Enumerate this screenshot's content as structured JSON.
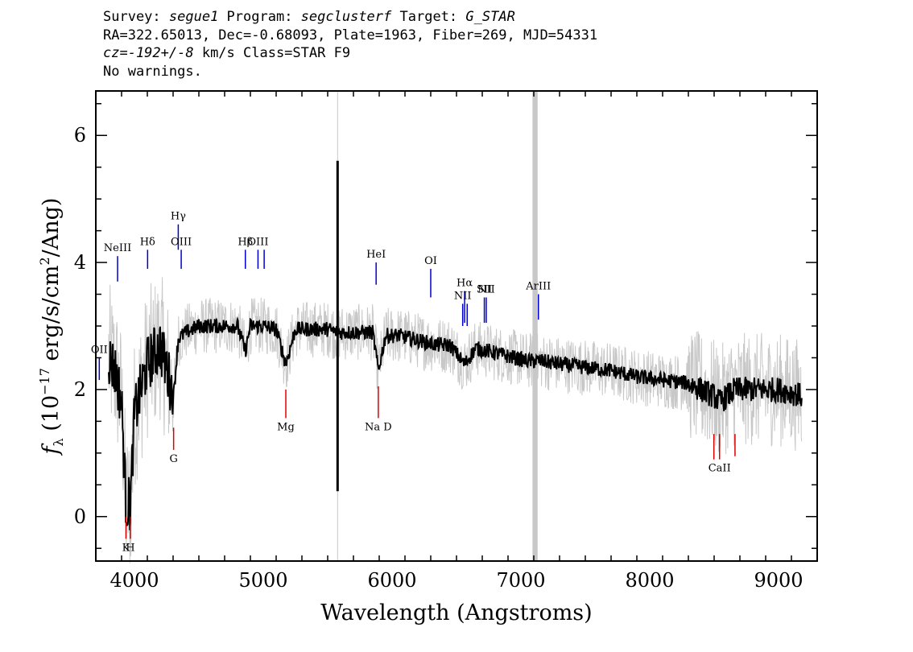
{
  "header": {
    "line1": {
      "survey_label": "Survey: ",
      "survey": "segue1",
      "program_label": " Program: ",
      "program": "segclusterf",
      "target_label": " Target: ",
      "target": "G_STAR"
    },
    "line2": "RA=322.65013, Dec=-0.68093, Plate=1963, Fiber=269, MJD=54331",
    "line3": {
      "cz": "cz=-192+/-8",
      "rest": " km/s Class=STAR F9"
    },
    "line4": "No warnings."
  },
  "chart_data": {
    "type": "line",
    "title": "",
    "xlabel": "Wavelength (Angstroms)",
    "ylabel": "f_λ (10^-17 erg/s/cm^2/Ang)",
    "xlim": [
      3700,
      9300
    ],
    "ylim": [
      -0.7,
      6.7
    ],
    "x_ticks": [
      4000,
      5000,
      6000,
      7000,
      8000,
      9000
    ],
    "y_ticks": [
      0,
      2,
      4,
      6
    ],
    "grid": false,
    "colors": {
      "flux": "#000000",
      "error": "#c8c8c8",
      "emission_line": "#0000cc",
      "absorption_line": "#dd0000"
    },
    "series": [
      {
        "role": "flux",
        "x": [
          3800,
          3850,
          3900,
          3934,
          3968,
          4000,
          4100,
          4200,
          4304,
          4340,
          4400,
          4500,
          4600,
          4700,
          4800,
          4861,
          4900,
          5000,
          5100,
          5175,
          5250,
          5400,
          5500,
          5580,
          5650,
          5750,
          5850,
          5893,
          5950,
          6050,
          6150,
          6250,
          6350,
          6450,
          6563,
          6650,
          6750,
          6850,
          6950,
          7050,
          7150,
          7300,
          7500,
          7700,
          7900,
          8100,
          8300,
          8498,
          8542,
          8662,
          8800,
          9000,
          9100,
          9180
        ],
        "y": [
          2.5,
          2.3,
          1.8,
          0.2,
          0.2,
          1.6,
          2.4,
          2.7,
          1.9,
          2.8,
          2.9,
          3.0,
          3.0,
          3.0,
          3.0,
          2.6,
          3.0,
          3.0,
          2.95,
          2.4,
          2.95,
          2.95,
          2.95,
          2.9,
          2.9,
          2.9,
          2.9,
          2.3,
          2.85,
          2.85,
          2.8,
          2.75,
          2.7,
          2.7,
          2.4,
          2.65,
          2.6,
          2.55,
          2.5,
          2.45,
          2.45,
          2.4,
          2.35,
          2.3,
          2.2,
          2.15,
          2.1,
          1.9,
          1.8,
          2.0,
          2.0,
          2.0,
          1.95,
          1.9
        ]
      },
      {
        "role": "sky-residual",
        "x": [
          5577
        ],
        "y_range": [
          0.4,
          5.6
        ]
      }
    ],
    "bad_pixel_band": {
      "x_range": [
        7090,
        7130
      ]
    },
    "emission_lines": [
      {
        "label": "NeIII",
        "x": 3869,
        "y_range": [
          3.7,
          4.1
        ]
      },
      {
        "label": "Hδ",
        "x": 4102,
        "y_range": [
          3.9,
          4.2
        ]
      },
      {
        "label": "Hγ",
        "x": 4340,
        "y_range": [
          4.2,
          4.6
        ]
      },
      {
        "label": "OIII",
        "x": 4363,
        "y_range": [
          3.9,
          4.2
        ]
      },
      {
        "label": "Hβ",
        "x": 4861,
        "y_range": [
          3.9,
          4.2
        ]
      },
      {
        "label": "OIII",
        "x": 4959,
        "y_range": [
          3.9,
          4.2
        ]
      },
      {
        "label": "",
        "x": 5007,
        "y_range": [
          3.9,
          4.2
        ]
      },
      {
        "label": "HeI",
        "x": 5876,
        "y_range": [
          3.65,
          4.0
        ]
      },
      {
        "label": "OI",
        "x": 6300,
        "y_range": [
          3.45,
          3.9
        ]
      },
      {
        "label": "NII",
        "x": 6548,
        "y_range": [
          3.0,
          3.35
        ]
      },
      {
        "label": "Hα",
        "x": 6563,
        "y_range": [
          3.05,
          3.55
        ]
      },
      {
        "label": "",
        "x": 6583,
        "y_range": [
          3.0,
          3.35
        ]
      },
      {
        "label": "SII",
        "x": 6716,
        "y_range": [
          3.05,
          3.45
        ]
      },
      {
        "label": "NII",
        "x": 6731,
        "y_range": [
          3.05,
          3.45
        ]
      },
      {
        "label": "ArIII",
        "x": 7136,
        "y_range": [
          3.1,
          3.5
        ]
      },
      {
        "label": "OII",
        "x": 3727,
        "y_range": [
          2.15,
          2.5
        ]
      }
    ],
    "absorption_lines": [
      {
        "label": "K",
        "x": 3934,
        "y_range": [
          -0.35,
          0.0
        ]
      },
      {
        "label": "H",
        "x": 3968,
        "y_range": [
          -0.35,
          0.0
        ]
      },
      {
        "label": "G",
        "x": 4304,
        "y_range": [
          1.05,
          1.4
        ]
      },
      {
        "label": "Mg",
        "x": 5175,
        "y_range": [
          1.55,
          2.0
        ]
      },
      {
        "label": "Na D",
        "x": 5893,
        "y_range": [
          1.55,
          2.05
        ]
      },
      {
        "label": "",
        "x": 8498,
        "y_range": [
          0.9,
          1.3
        ]
      },
      {
        "label": "CaII",
        "x": 8542,
        "y_range": [
          0.9,
          1.3
        ]
      },
      {
        "label": "",
        "x": 8662,
        "y_range": [
          0.95,
          1.3
        ]
      }
    ]
  }
}
